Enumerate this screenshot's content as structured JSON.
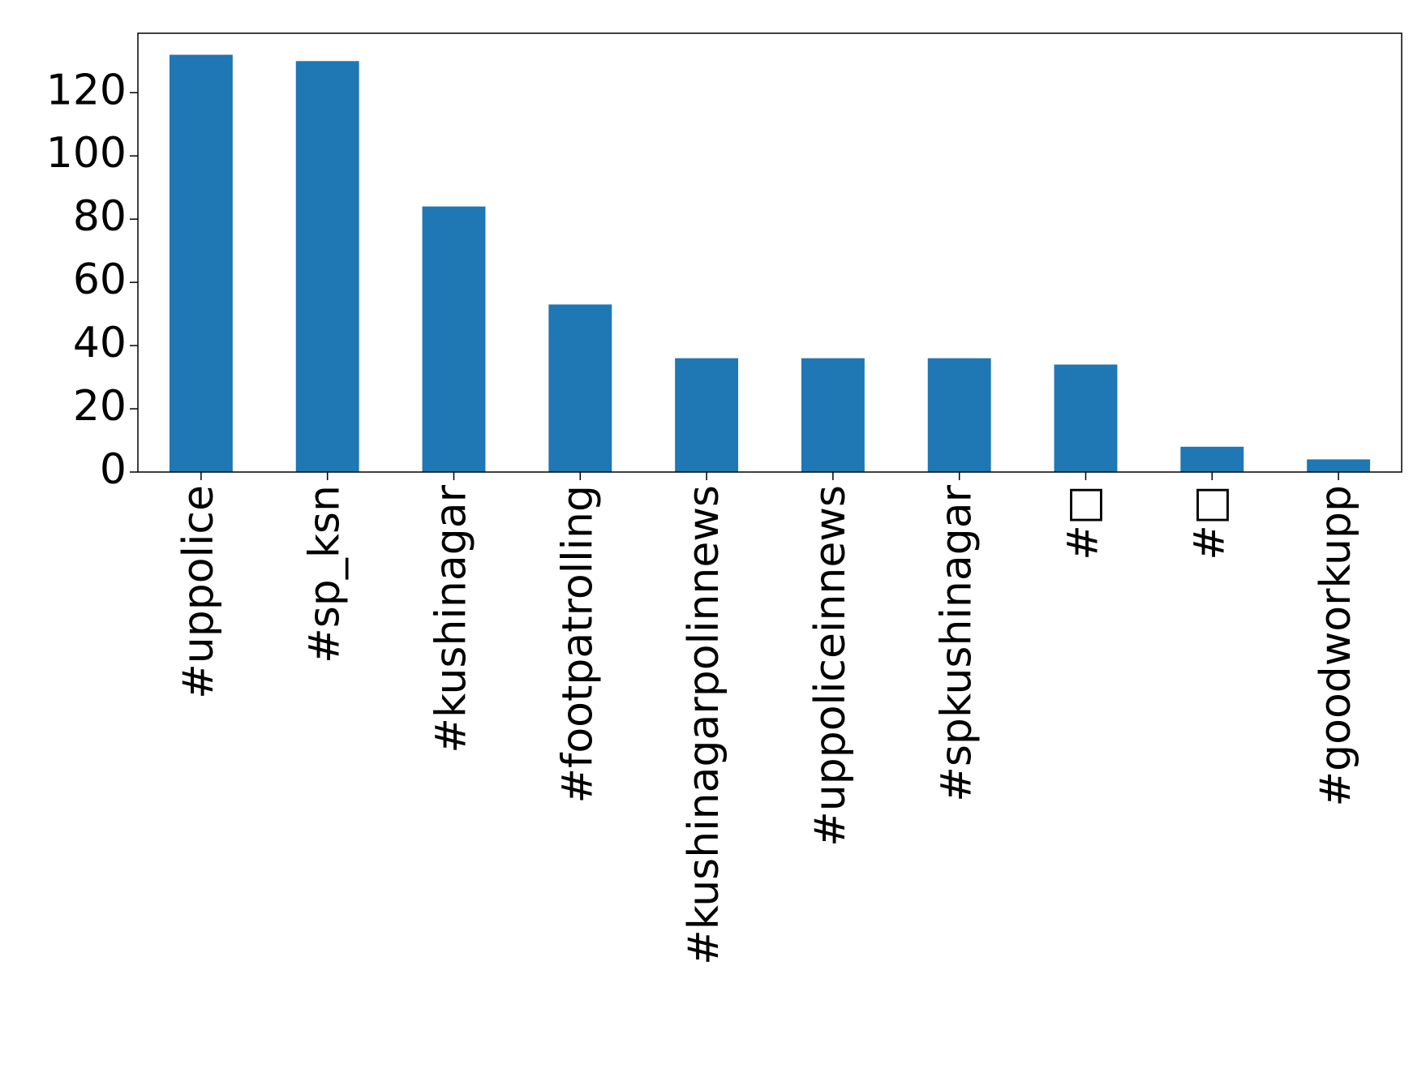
{
  "chart_data": {
    "type": "bar",
    "categories": [
      "#uppolice",
      "#sp_ksn",
      "#kushinagar",
      "#footpatrolling",
      "#kushinagarpolinnews",
      "#uppoliceinnews",
      "#spkushinagar",
      "#□",
      "#□",
      "#goodworkupp"
    ],
    "values": [
      132,
      130,
      84,
      53,
      36,
      36,
      36,
      34,
      8,
      4
    ],
    "color": "#1f77b4",
    "ylim": [
      0,
      138.8
    ],
    "yticks": [
      0,
      20,
      40,
      60,
      80,
      100,
      120
    ],
    "grid": false
  }
}
